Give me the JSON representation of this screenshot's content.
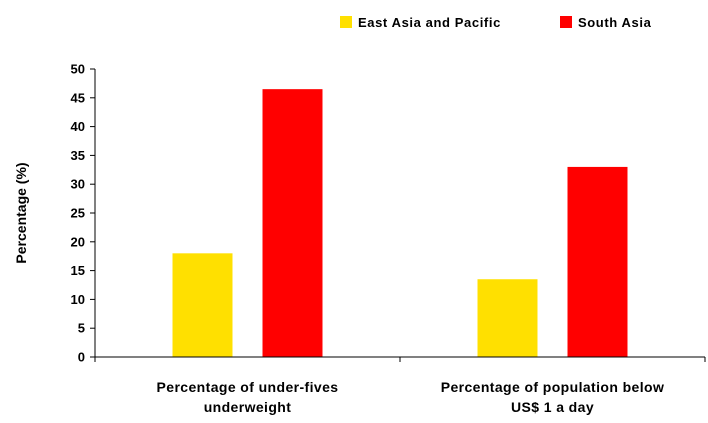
{
  "chart_data": {
    "type": "bar",
    "title": "",
    "xlabel": "",
    "ylabel": "Percentage (%)",
    "ylim": [
      0,
      50
    ],
    "yticks": [
      0,
      5,
      10,
      15,
      20,
      25,
      30,
      35,
      40,
      45,
      50
    ],
    "categories": [
      [
        "Percentage of under-fives",
        "underweight"
      ],
      [
        "Percentage of population below",
        "US$ 1 a day"
      ]
    ],
    "series": [
      {
        "name": "East Asia and Pacific",
        "color": "#ffe000",
        "values": [
          18,
          13.5
        ]
      },
      {
        "name": "South Asia",
        "color": "#ff0000",
        "values": [
          46.5,
          33
        ]
      }
    ],
    "legend_position": "top-right",
    "grid": false
  }
}
